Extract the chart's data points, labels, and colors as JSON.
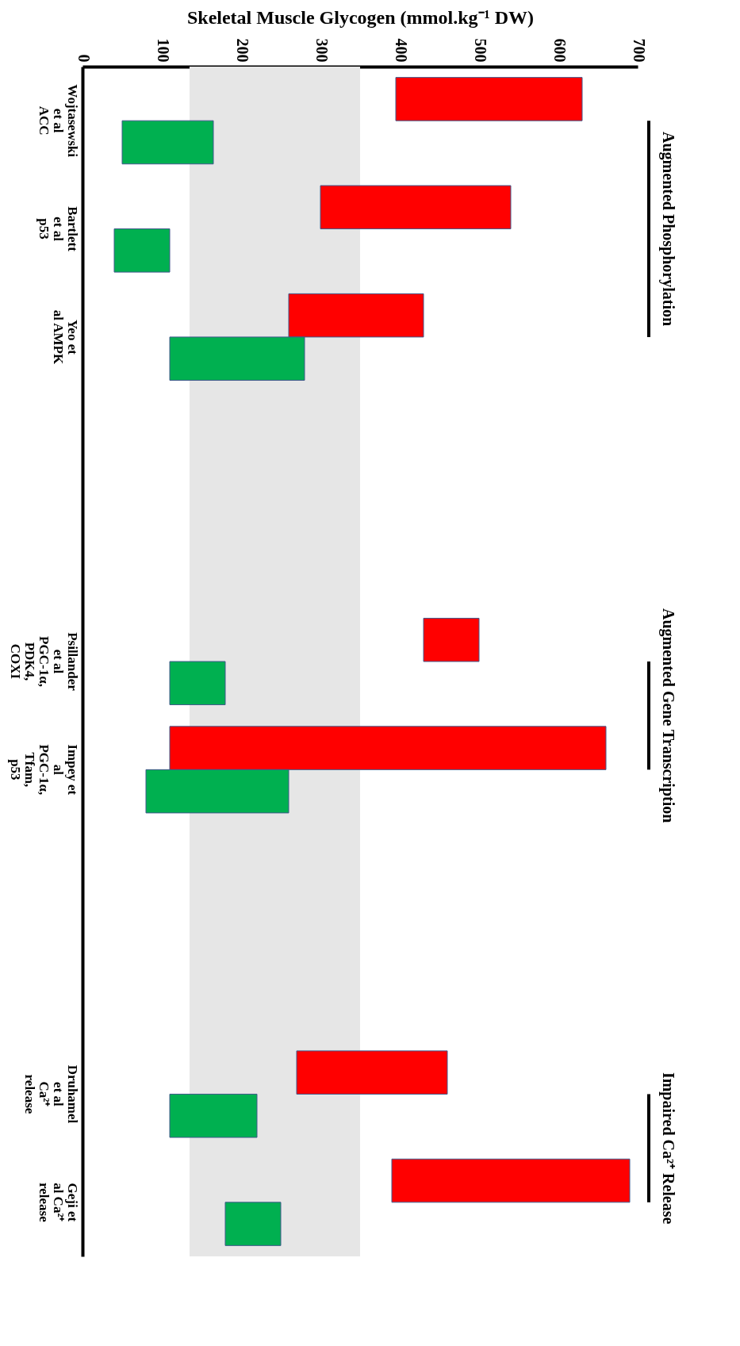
{
  "chart_data": {
    "type": "bar",
    "orientation": "horizontal",
    "xlabel": "Skeletal Muscle Glycogen (mmol.kg⁻¹ DW)",
    "categories": [
      "Wojtasewski et al ACC",
      "Bartlett et al p53",
      "Yeo et al AMPK",
      null,
      null,
      "Psillander et al PGC-1α, PDK4, COXI",
      "Impey et al PGC-1α, Tfam, p53",
      null,
      null,
      "Druhamel et al Ca²⁺ release",
      "Geji et al Ca²⁺ release"
    ],
    "series": [
      {
        "color": "#ff0000",
        "base": [
          395,
          300,
          260,
          null,
          null,
          430,
          110,
          null,
          null,
          270,
          390
        ],
        "values": [
          235,
          240,
          170,
          null,
          null,
          70,
          550,
          null,
          null,
          190,
          300
        ]
      },
      {
        "color": "#00b050",
        "base": [
          50,
          40,
          110,
          null,
          null,
          110,
          80,
          null,
          null,
          110,
          180
        ],
        "values": [
          115,
          70,
          170,
          null,
          null,
          70,
          180,
          null,
          null,
          110,
          70
        ]
      }
    ],
    "xlim": [
      0,
      700
    ],
    "xticks": [
      0,
      100,
      200,
      300,
      400,
      500,
      600,
      700
    ],
    "bands": [
      {
        "axis": "x",
        "from": 135,
        "to": 350,
        "color": "#e6e6e6"
      }
    ],
    "annotations": [
      "Augmented Phosphorylation",
      "Augmented Gene Transcription",
      "Impaired Ca²⁺ Release"
    ]
  }
}
